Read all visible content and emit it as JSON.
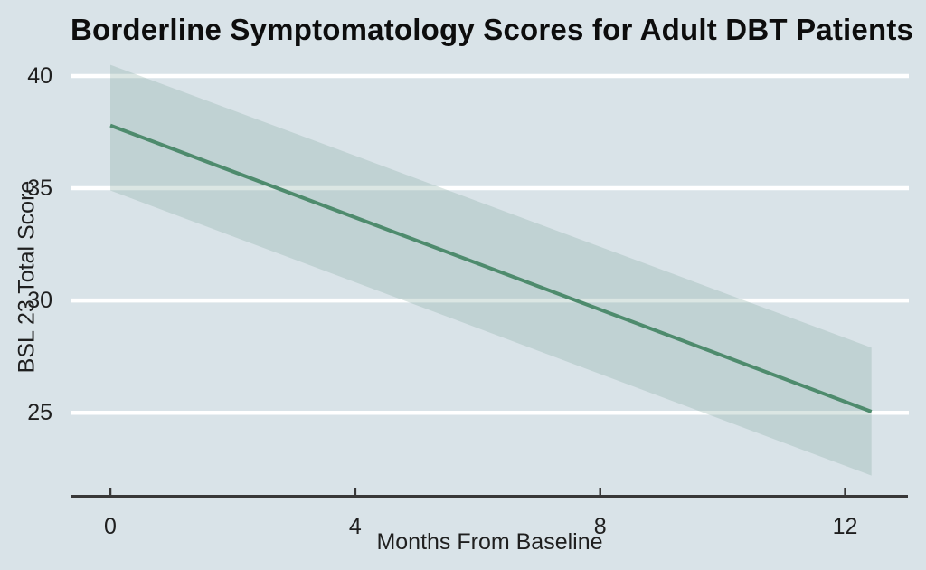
{
  "chart_data": {
    "type": "line",
    "title": "Borderline Symptomatology Scores for Adult DBT Patients",
    "xlabel": "Months From Baseline",
    "ylabel": "BSL 23 Total Score",
    "x_ticks": [
      0,
      4,
      8,
      12
    ],
    "y_ticks": [
      25,
      30,
      35,
      40
    ],
    "xlim": [
      -0.65,
      13.04
    ],
    "ylim": [
      21.3,
      41.37
    ],
    "grid": "horizontal white gridlines at each y tick, no vertical gridlines",
    "legend": "none",
    "series": [
      {
        "name": "fitted-bsl23-trend",
        "x": [
          0,
          12.43
        ],
        "y": [
          37.8,
          25.05
        ]
      }
    ],
    "confidence_band": {
      "x": [
        0,
        12.43
      ],
      "upper": [
        40.5,
        27.9
      ],
      "lower": [
        34.9,
        22.2
      ]
    },
    "colors": {
      "background": "#d9e3e8",
      "gridline": "#ffffff",
      "line": "#4e8b6d",
      "band_fill": "#87aba2",
      "band_opacity": 0.3,
      "axis": "#383838",
      "title_text": "#0d0d0d",
      "label_text": "#1f1f1f"
    }
  }
}
